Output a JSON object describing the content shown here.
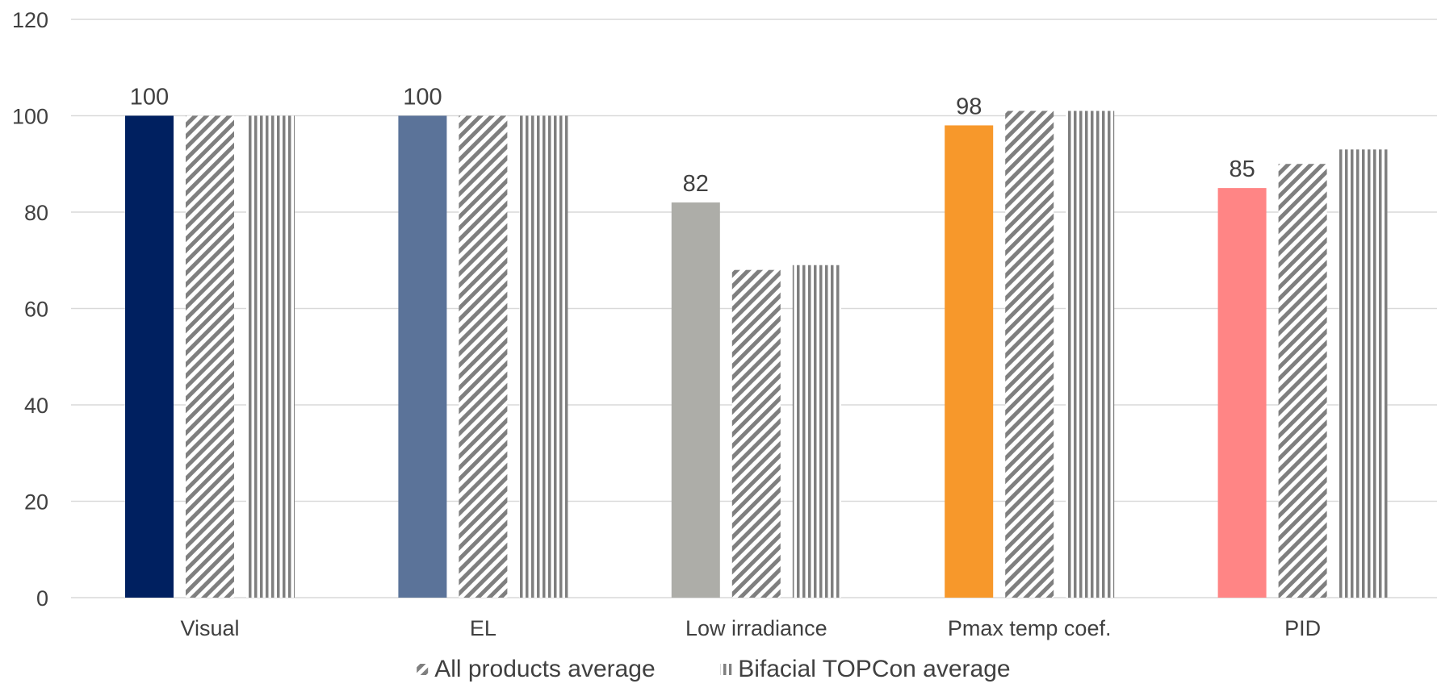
{
  "chart_data": {
    "type": "bar",
    "title": "",
    "xlabel": "",
    "ylabel": "",
    "ylim": [
      0,
      120
    ],
    "yticks": [
      0,
      20,
      40,
      60,
      80,
      100,
      120
    ],
    "grid": true,
    "legend_position": "bottom",
    "categories": [
      "Visual",
      "EL",
      "Low irradiance",
      "Pmax temp coef.",
      "PID"
    ],
    "series": [
      {
        "key": "product",
        "values": [
          100,
          100,
          82,
          98,
          85
        ],
        "colors": [
          "#002060",
          "#5B7399",
          "#ADADA8",
          "#F7982B",
          "#FF8585"
        ],
        "data_labels": [
          "100",
          "100",
          "82",
          "98",
          "85"
        ],
        "pattern": "solid"
      },
      {
        "key": "all_products",
        "name": "All products average",
        "values": [
          100,
          100,
          68,
          101,
          90
        ],
        "color": "#7F7F7F",
        "pattern": "diagonal"
      },
      {
        "key": "bifacial_topcon",
        "name": "Bifacial TOPCon average",
        "values": [
          100,
          100,
          69,
          101,
          93
        ],
        "color": "#7F7F7F",
        "pattern": "vertical"
      }
    ],
    "colors": {
      "gridline": "#D9D9D9",
      "axis": "#D9D9D9",
      "text": "#404040"
    }
  }
}
